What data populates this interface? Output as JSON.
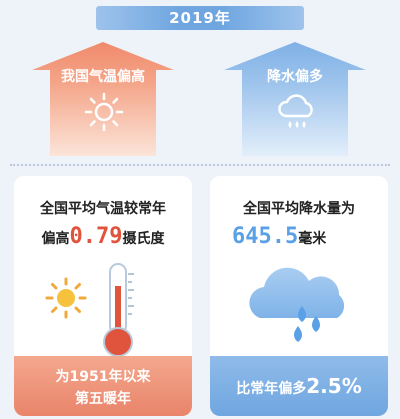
{
  "header": {
    "year": "2019年"
  },
  "top": {
    "left_house": {
      "label": "我国气温偏高",
      "icon": "sun-icon"
    },
    "right_house": {
      "label": "降水偏多",
      "icon": "rain-cloud-icon"
    }
  },
  "cards": {
    "temperature": {
      "line1": "全国平均气温较常年",
      "prefix": "偏高",
      "value": "0.79",
      "unit": "摄氏度",
      "footer_line1": "为1951年以来",
      "footer_line2": "第五暖年"
    },
    "precipitation": {
      "line1": "全国平均降水量为",
      "value": "645.5",
      "unit": "毫米",
      "footer_prefix": "比常年偏多",
      "footer_value": "2.5%"
    }
  },
  "colors": {
    "warm": "#e9846a",
    "cool": "#6fa6e0",
    "accent_red": "#e0533c",
    "accent_blue": "#5aa0e6"
  }
}
